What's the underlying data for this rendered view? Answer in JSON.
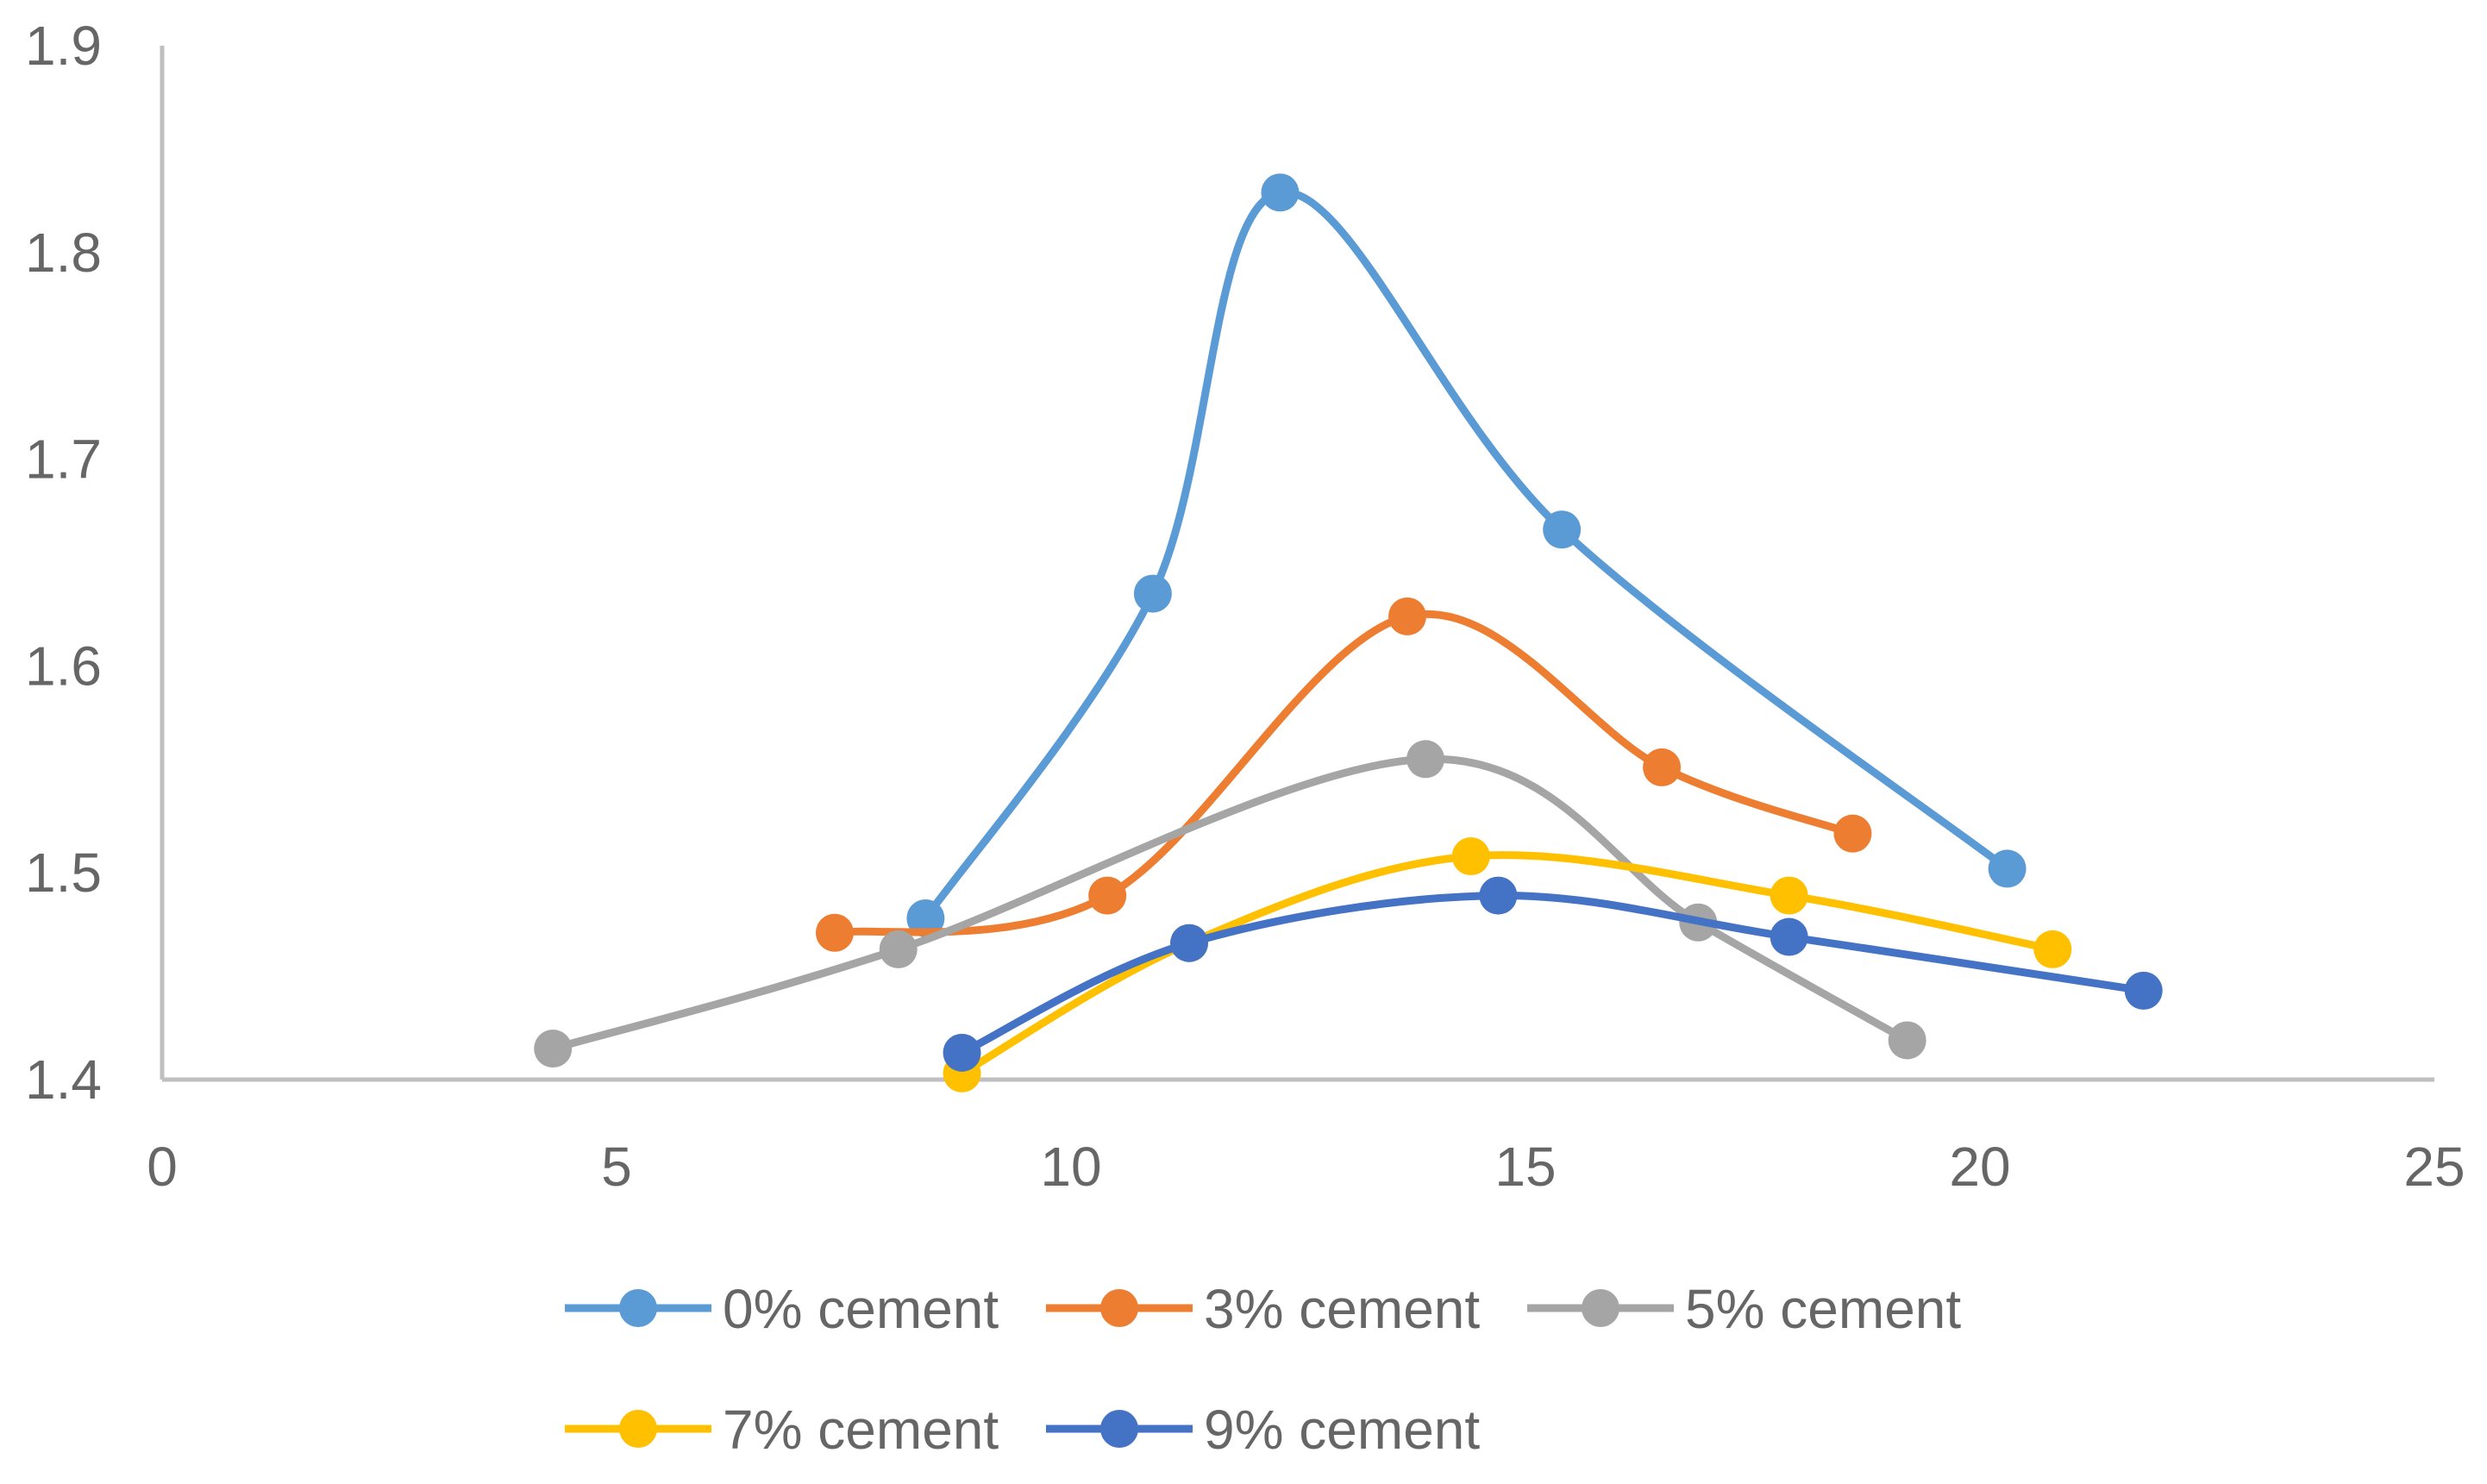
{
  "chart_data": {
    "type": "line",
    "smooth": true,
    "title": "",
    "xlabel": "",
    "ylabel": "",
    "xlim": [
      0,
      25
    ],
    "ylim": [
      1.4,
      1.9
    ],
    "x_ticks": [
      "0",
      "5",
      "10",
      "15",
      "20",
      "25"
    ],
    "y_ticks": [
      "1.4",
      "1.5",
      "1.6",
      "1.7",
      "1.8",
      "1.9"
    ],
    "grid": false,
    "legend_position": "bottom",
    "series": [
      {
        "name": "0% cement",
        "color": "#5B9BD5",
        "points": [
          [
            8.4,
            1.478
          ],
          [
            10.9,
            1.635
          ],
          [
            12.3,
            1.829
          ],
          [
            15.4,
            1.666
          ],
          [
            20.3,
            1.502
          ]
        ]
      },
      {
        "name": "3% cement",
        "color": "#ED7D31",
        "points": [
          [
            7.4,
            1.471
          ],
          [
            10.4,
            1.489
          ],
          [
            13.7,
            1.624
          ],
          [
            16.5,
            1.551
          ],
          [
            18.6,
            1.519
          ]
        ]
      },
      {
        "name": "5% cement",
        "color": "#A5A5A5",
        "points": [
          [
            4.3,
            1.415
          ],
          [
            8.1,
            1.463
          ],
          [
            13.9,
            1.555
          ],
          [
            16.9,
            1.476
          ],
          [
            19.2,
            1.419
          ]
        ]
      },
      {
        "name": "7% cement",
        "color": "#FFC000",
        "points": [
          [
            8.8,
            1.403
          ],
          [
            11.3,
            1.466
          ],
          [
            14.4,
            1.508
          ],
          [
            17.9,
            1.489
          ],
          [
            20.8,
            1.463
          ]
        ]
      },
      {
        "name": "9% cement",
        "color": "#4472C4",
        "points": [
          [
            8.8,
            1.413
          ],
          [
            11.3,
            1.466
          ],
          [
            14.7,
            1.489
          ],
          [
            17.9,
            1.469
          ],
          [
            21.8,
            1.443
          ]
        ]
      }
    ]
  }
}
